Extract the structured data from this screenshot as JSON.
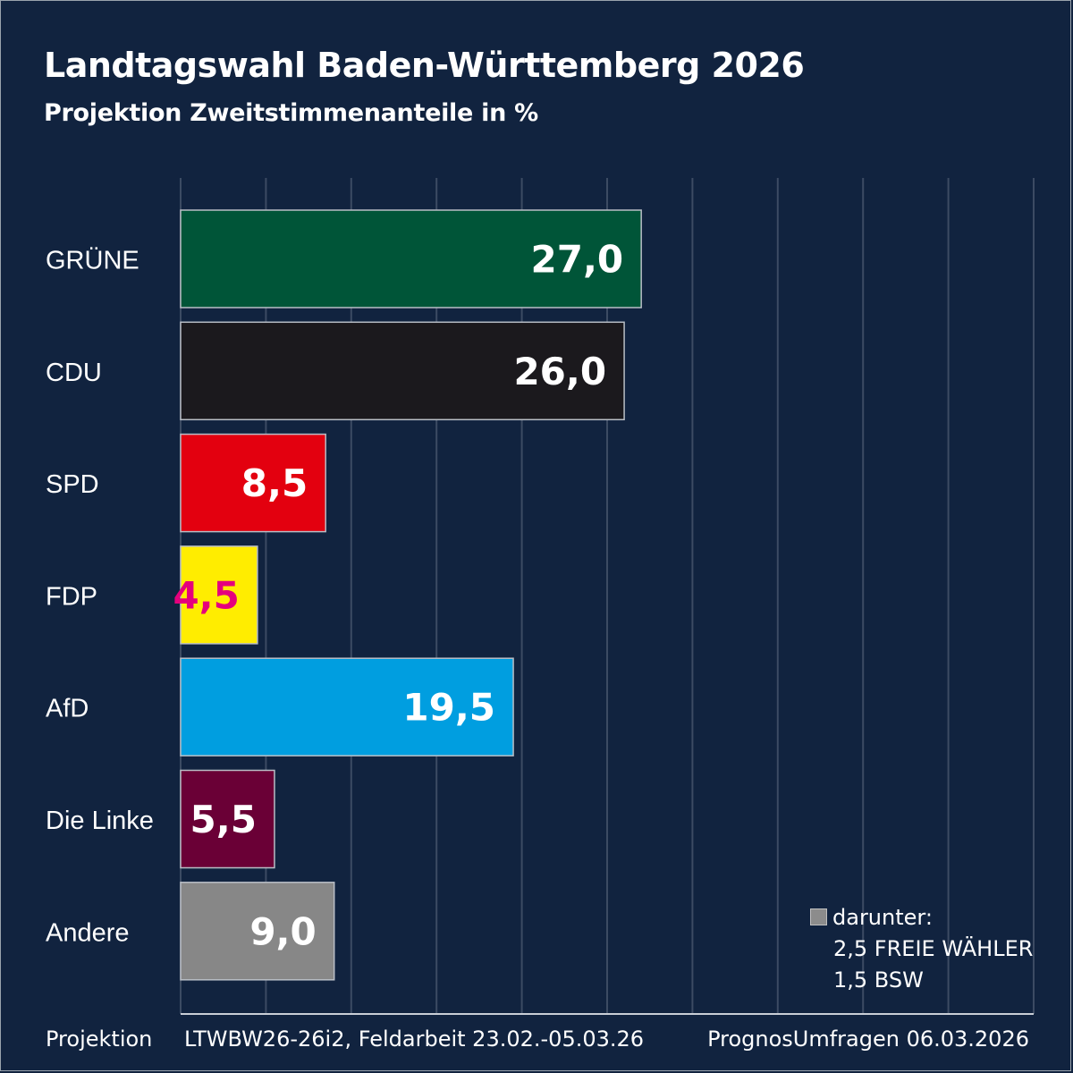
{
  "title": "Landtagswahl Baden-Württemberg 2026",
  "subtitle": "Projektion Zweitstimmenanteile in %",
  "chart_data": {
    "type": "bar",
    "orientation": "horizontal",
    "categories": [
      "GRÜNE",
      "CDU",
      "SPD",
      "FDP",
      "AfD",
      "Die Linke",
      "Andere"
    ],
    "values": [
      27.0,
      26.0,
      8.5,
      4.5,
      19.5,
      5.5,
      9.0
    ],
    "value_labels": [
      "27,0",
      "26,0",
      "8,5",
      "4,5",
      "19,5",
      "5,5",
      "9,0"
    ],
    "colors": [
      "#005538",
      "#1b191d",
      "#e3000f",
      "#ffed00",
      "#009ee0",
      "#6a0036",
      "#878787"
    ],
    "label_colors": [
      "#ffffff",
      "#ffffff",
      "#ffffff",
      "#e5007d",
      "#ffffff",
      "#ffffff",
      "#ffffff"
    ],
    "xlim": [
      0,
      50
    ],
    "grid_step": 5,
    "grid": true
  },
  "note": {
    "line1": "darunter:",
    "line2": "2,5 FREIE WÄHLER",
    "line3": "1,5 BSW"
  },
  "footer": {
    "left": "Projektion",
    "middle": "LTWBW26-26i2, Feldarbeit 23.02.-05.03.26",
    "right": "PrognosUmfragen 06.03.2026"
  }
}
